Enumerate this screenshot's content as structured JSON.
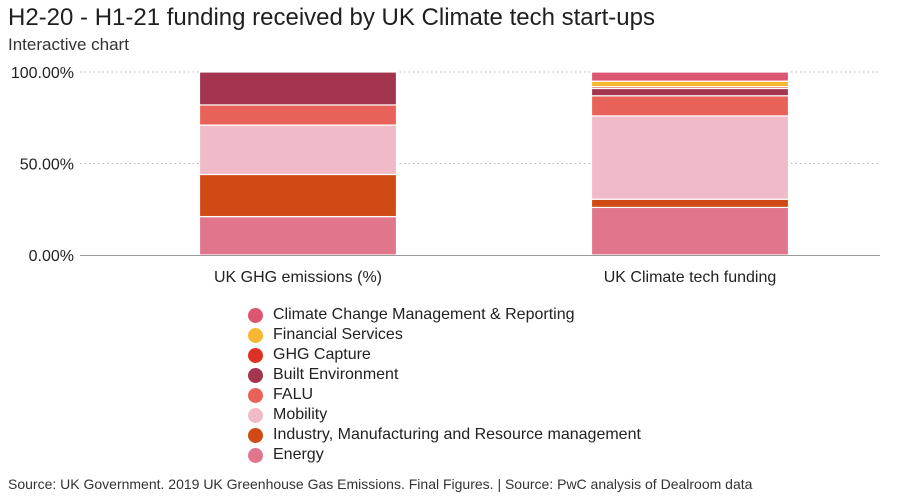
{
  "title": "H2-20 - H1-21 funding received by UK Climate tech start-ups",
  "subtitle": "Interactive chart",
  "source": "Source: UK Government. 2019 UK Greenhouse Gas Emissions. Final Figures. | Source: PwC analysis of Dealroom data",
  "chart_data": {
    "type": "bar",
    "stacked": true,
    "categories": [
      "UK GHG emissions (%)",
      "UK Climate tech funding"
    ],
    "ylim": [
      0,
      100
    ],
    "yticks": [
      "0.00%",
      "50.00%",
      "100.00%"
    ],
    "ytick_values": [
      0,
      50,
      100
    ],
    "grid": true,
    "legend_position": "bottom",
    "series": [
      {
        "name": "Energy",
        "color": "#e0758b",
        "values": [
          21,
          26
        ]
      },
      {
        "name": "Industry, Manufacturing and Resource management",
        "color": "#cf4a14",
        "values": [
          23,
          4.5
        ]
      },
      {
        "name": "Mobility",
        "color": "#f1bac8",
        "values": [
          27,
          45.5
        ]
      },
      {
        "name": "FALU",
        "color": "#e8625a",
        "values": [
          11,
          11
        ]
      },
      {
        "name": "Built Environment",
        "color": "#a3364e",
        "values": [
          18,
          4
        ]
      },
      {
        "name": "GHG Capture",
        "color": "#de3126",
        "values": [
          0,
          1
        ]
      },
      {
        "name": "Financial Services",
        "color": "#f7b730",
        "values": [
          0,
          3
        ]
      },
      {
        "name": "Climate Change Management & Reporting",
        "color": "#db5771",
        "values": [
          0,
          5
        ]
      }
    ]
  }
}
